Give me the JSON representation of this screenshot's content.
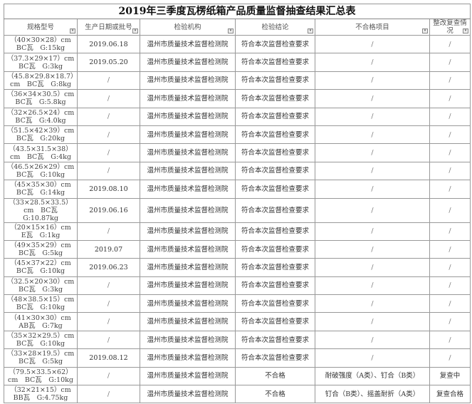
{
  "title": "2019年三季度瓦楞纸箱产品质量监督抽查结果汇总表",
  "headers": [
    "规格型号",
    "生产日期或批号",
    "检验机构",
    "检验结论",
    "不合格项目",
    "整改复查情况"
  ],
  "rows": [
    {
      "spec": "（40×30×28）cm　BC瓦　G:15kg",
      "date": "2019.06.18",
      "org": "温州市质量技术监督检测院",
      "result": "符合本次监督检查要求",
      "items": "/",
      "recheck": "/"
    },
    {
      "spec": "（37.3×29×17）cm　BC瓦　G:3kg",
      "date": "2019.05.20",
      "org": "温州市质量技术监督检测院",
      "result": "符合本次监督检查要求",
      "items": "/",
      "recheck": "/"
    },
    {
      "spec": "（45.8×29.8×18.7）cm　BC瓦　G:8kg",
      "date": "/",
      "org": "温州市质量技术监督检测院",
      "result": "符合本次监督检查要求",
      "items": "/",
      "recheck": "/"
    },
    {
      "spec": "（36×34×30.5）cm　BC瓦　G:5.8kg",
      "date": "/",
      "org": "温州市质量技术监督检测院",
      "result": "符合本次监督检查要求",
      "items": "/",
      "recheck": "/"
    },
    {
      "spec": "（32×26.5×24）cm　BC瓦　G:4.0kg",
      "date": "/",
      "org": "温州市质量技术监督检测院",
      "result": "符合本次监督检查要求",
      "items": "/",
      "recheck": "/"
    },
    {
      "spec": "（51.5×42×39）cm　BC瓦　G:20kg",
      "date": "/",
      "org": "温州市质量技术监督检测院",
      "result": "符合本次监督检查要求",
      "items": "/",
      "recheck": "/"
    },
    {
      "spec": "（43.5×31.5×38）cm　BC瓦　G:4kg",
      "date": "/",
      "org": "温州市质量技术监督检测院",
      "result": "符合本次监督检查要求",
      "items": "/",
      "recheck": "/"
    },
    {
      "spec": "（46.5×26×29）cm　BC瓦　G:10kg",
      "date": "/",
      "org": "温州市质量技术监督检测院",
      "result": "符合本次监督检查要求",
      "items": "/",
      "recheck": "/"
    },
    {
      "spec": "（45×35×30）cm　BC瓦　G:14kg",
      "date": "2019.08.10",
      "org": "温州市质量技术监督检测院",
      "result": "符合本次监督检查要求",
      "items": "/",
      "recheck": "/"
    },
    {
      "spec": "（33×28.5×33.5）cm　BC瓦　G:10.87kg",
      "date": "2019.06.16",
      "org": "温州市质量技术监督检测院",
      "result": "符合本次监督检查要求",
      "items": "/",
      "recheck": "/"
    },
    {
      "spec": "（20×15×16）cm　E瓦　G:1kg",
      "date": "/",
      "org": "温州市质量技术监督检测院",
      "result": "符合本次监督检查要求",
      "items": "/",
      "recheck": "/"
    },
    {
      "spec": "（49×35×29）cm　BC瓦　G:5kg",
      "date": "2019.07",
      "org": "温州市质量技术监督检测院",
      "result": "符合本次监督检查要求",
      "items": "/",
      "recheck": "/"
    },
    {
      "spec": "（45×37×22）cm　BC瓦　G:10kg",
      "date": "2019.06.23",
      "org": "温州市质量技术监督检测院",
      "result": "符合本次监督检查要求",
      "items": "/",
      "recheck": "/"
    },
    {
      "spec": "（32.5×20×30）cm　BC瓦　G:3kg",
      "date": "/",
      "org": "温州市质量技术监督检测院",
      "result": "符合本次监督检查要求",
      "items": "/",
      "recheck": "/"
    },
    {
      "spec": "（48×38.5×15）cm　BC瓦　G:10kg",
      "date": "/",
      "org": "温州市质量技术监督检测院",
      "result": "符合本次监督检查要求",
      "items": "/",
      "recheck": "/"
    },
    {
      "spec": "（41×30×30）cm　AB瓦　G:7kg",
      "date": "/",
      "org": "温州市质量技术监督检测院",
      "result": "符合本次监督检查要求",
      "items": "/",
      "recheck": "/"
    },
    {
      "spec": "（35×32×29.5）cm　BC瓦　G:10kg",
      "date": "/",
      "org": "温州市质量技术监督检测院",
      "result": "符合本次监督检查要求",
      "items": "/",
      "recheck": "/"
    },
    {
      "spec": "（33×28×19.5）cm　BC瓦　G:5kg",
      "date": "2019.08.12",
      "org": "温州市质量技术监督检测院",
      "result": "符合本次监督检查要求",
      "items": "/",
      "recheck": "/"
    },
    {
      "spec": "（79.5×33.5×62）cm　BC瓦　G:10kg",
      "date": "/",
      "org": "温州市质量技术监督检测院",
      "result": "不合格",
      "items": "耐破强度（A类）、钉合（B类）",
      "recheck": "复查中"
    },
    {
      "spec": "（32×21×15）cm　BB瓦　G:4.75kg",
      "date": "/",
      "org": "温州市质量技术监督检测院",
      "result": "不合格",
      "items": "钉合（B类）、摇盖耐折（A类）",
      "recheck": "复查合格"
    }
  ]
}
